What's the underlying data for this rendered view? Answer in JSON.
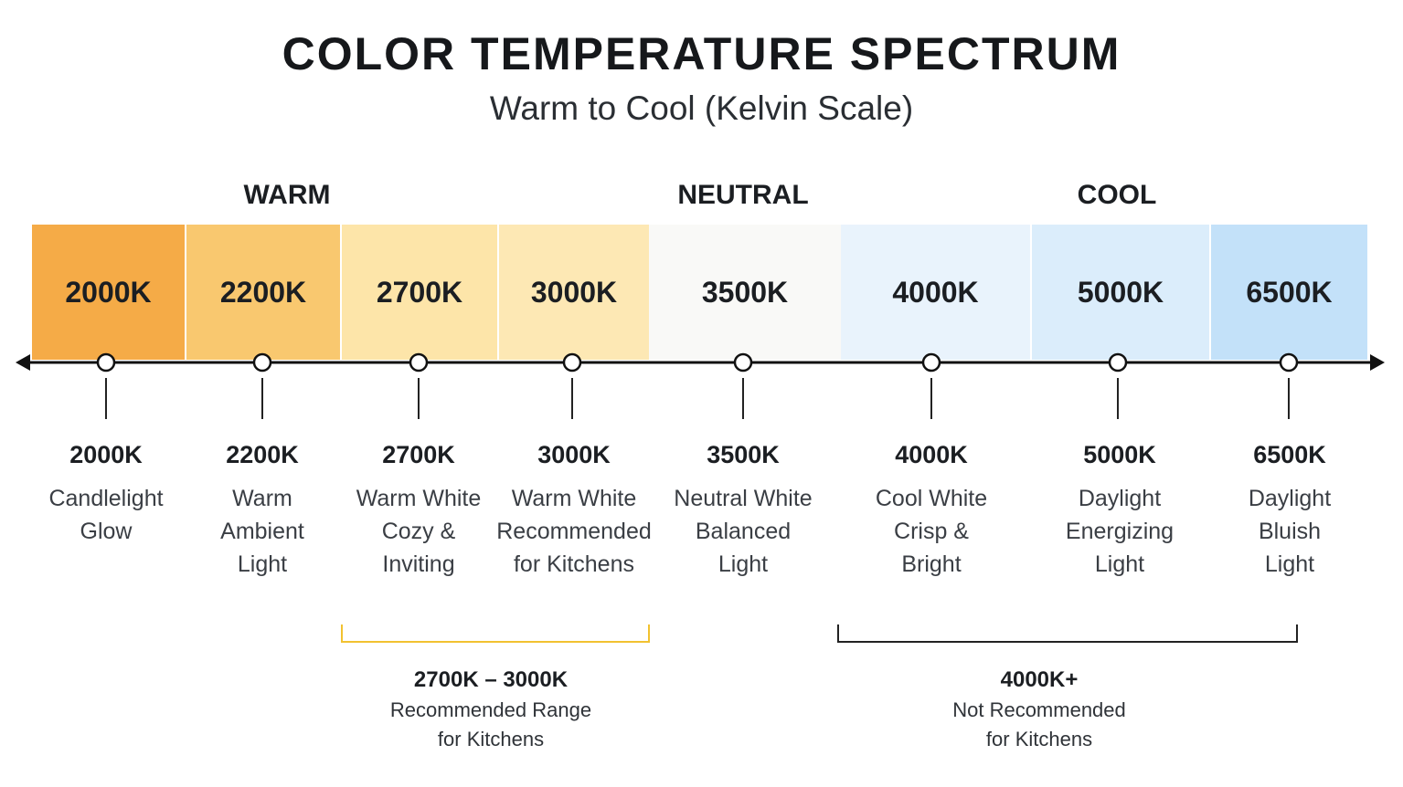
{
  "title": "COLOR TEMPERATURE SPECTRUM",
  "subtitle": "Warm to Cool (Kelvin Scale)",
  "groups": [
    {
      "label": "WARM"
    },
    {
      "label": "NEUTRAL"
    },
    {
      "label": "COOL"
    }
  ],
  "temperatures": [
    {
      "kelvin": "2000K",
      "color": "#f5ab47",
      "desc": [
        "Candlelight",
        "Glow"
      ]
    },
    {
      "kelvin": "2200K",
      "color": "#f9c86f",
      "desc": [
        "Warm",
        "Ambient",
        "Light"
      ]
    },
    {
      "kelvin": "2700K",
      "color": "#fde5a9",
      "desc": [
        "Warm White",
        "Cozy &",
        "Inviting"
      ]
    },
    {
      "kelvin": "3000K",
      "color": "#fde8b4",
      "desc": [
        "Warm White",
        "Recommended",
        "for Kitchens"
      ]
    },
    {
      "kelvin": "3500K",
      "color": "#f9f9f7",
      "desc": [
        "Neutral White",
        "Balanced",
        "Light"
      ]
    },
    {
      "kelvin": "4000K",
      "color": "#e9f3fc",
      "desc": [
        "Cool White",
        "Crisp &",
        "Bright"
      ]
    },
    {
      "kelvin": "5000K",
      "color": "#dbedfb",
      "desc": [
        "Daylight",
        "Energizing",
        "Light"
      ]
    },
    {
      "kelvin": "6500K",
      "color": "#c3e1f9",
      "desc": [
        "Daylight",
        "Bluish",
        "Light"
      ]
    }
  ],
  "ranges": [
    {
      "title": "2700K – 3000K",
      "lines": [
        "Recommended Range",
        "for Kitchens"
      ],
      "color": "#f2c230"
    },
    {
      "title": "4000K+",
      "lines": [
        "Not Recommended",
        "for Kitchens"
      ],
      "color": "#222222"
    }
  ]
}
